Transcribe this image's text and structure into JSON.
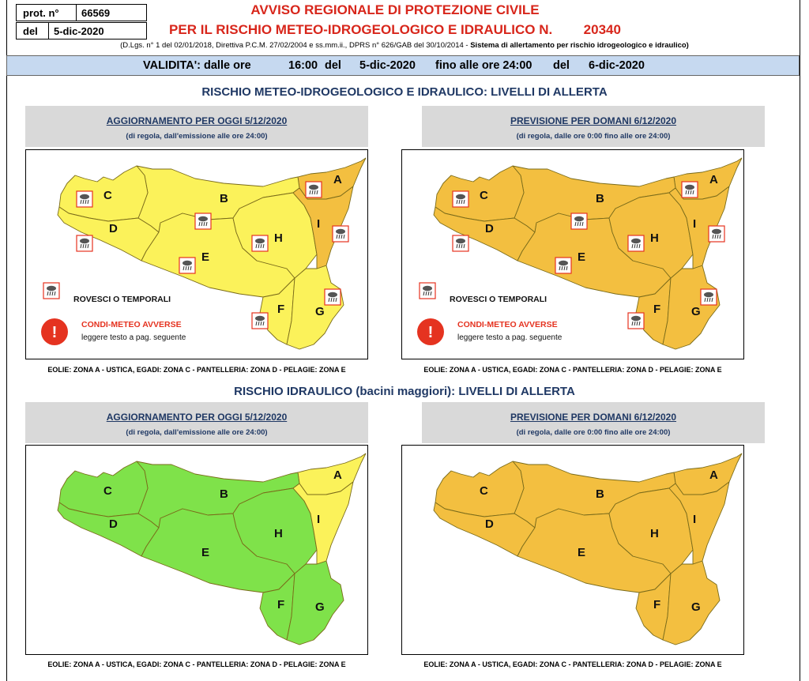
{
  "header": {
    "prot_label": "prot. n°",
    "prot_number": "66569",
    "del_label": "del",
    "del_date": "5-dic-2020",
    "title_line1": "AVVISO REGIONALE DI PROTEZIONE CIVILE",
    "title_line2": "PER IL RISCHIO METEO-IDROGEOLOGICO E IDRAULICO N.",
    "avviso_number": "20340",
    "norm_regular": "(D.Lgs. n° 1 del 02/01/2018, Direttiva P.C.M. 27/02/2004 e ss.mm.ii., DPRS n° 626/GAB del 30/10/2014 - ",
    "norm_bold": "Sistema di allertamento per rischio idrogeologico e idraulico)"
  },
  "validity": {
    "label": "VALIDITA': dalle ore",
    "from_time": "16:00",
    "del1": "del",
    "from_date": "5-dic-2020",
    "until": "fino alle ore 24:00",
    "del2": "del",
    "to_date": "6-dic-2020"
  },
  "section1": {
    "title": "RISCHIO METEO-IDROGEOLOGICO E IDRAULICO: LIVELLI DI ALLERTA",
    "today_title": "AGGIORNAMENTO PER OGGI 5/12/2020",
    "today_sub": "(di regola, dall'emissione alle ore 24:00)",
    "tomorrow_title": "PREVISIONE PER DOMANI 6/12/2020",
    "tomorrow_sub": "(di regola, dalle ore 0:00 fino alle ore 24:00)",
    "legend_storms": "ROVESCI O TEMPORALI",
    "legend_adverse_title": "CONDI-METEO AVVERSE",
    "legend_adverse_text": "leggere testo a pag. seguente",
    "islands": "EOLIE: ZONA A - USTICA, EGADI: ZONA C - PANTELLERIA: ZONA D - PELAGIE: ZONA E"
  },
  "section2": {
    "title": "RISCHIO IDRAULICO (bacini maggiori): LIVELLI DI ALLERTA",
    "today_title": "AGGIORNAMENTO PER OGGI 5/12/2020",
    "today_sub": "(di regola, dall'emissione alle ore 24:00)",
    "tomorrow_title": "PREVISIONE PER DOMANI 6/12/2020",
    "tomorrow_sub": "(di regola, dalle ore 0:00 fino alle ore 24:00)",
    "islands": "EOLIE: ZONA A - USTICA, EGADI: ZONA C - PANTELLERIA: ZONA D - PELAGIE: ZONA E"
  },
  "zones": [
    "A",
    "B",
    "C",
    "D",
    "E",
    "F",
    "G",
    "H",
    "I"
  ],
  "colors": {
    "yellow": "#fbf25a",
    "orange": "#f3bf40",
    "green": "#7fe24a",
    "title_red": "#d8261b",
    "navy": "#1f3864",
    "alert_red": "#e53320",
    "validity_bg": "#c6d9f0"
  },
  "maps": {
    "meteo_today": {
      "A": "orange",
      "B": "yellow",
      "C": "yellow",
      "D": "yellow",
      "E": "yellow",
      "F": "yellow",
      "G": "yellow",
      "H": "yellow",
      "I": "orange"
    },
    "meteo_tomorrow": {
      "A": "orange",
      "B": "orange",
      "C": "orange",
      "D": "orange",
      "E": "orange",
      "F": "orange",
      "G": "orange",
      "H": "orange",
      "I": "orange"
    },
    "hydro_today": {
      "A": "yellow",
      "B": "green",
      "C": "green",
      "D": "green",
      "E": "green",
      "F": "green",
      "G": "green",
      "H": "green",
      "I": "yellow"
    },
    "hydro_tomorrow": {
      "A": "orange",
      "B": "orange",
      "C": "orange",
      "D": "orange",
      "E": "orange",
      "F": "orange",
      "G": "orange",
      "H": "orange",
      "I": "orange"
    }
  },
  "storm_icons": {
    "meteo_today": [
      "A",
      "B",
      "C",
      "D",
      "E",
      "F",
      "G",
      "H",
      "I"
    ],
    "meteo_tomorrow": [
      "A",
      "B",
      "C",
      "D",
      "E",
      "F",
      "G",
      "H",
      "I"
    ]
  }
}
